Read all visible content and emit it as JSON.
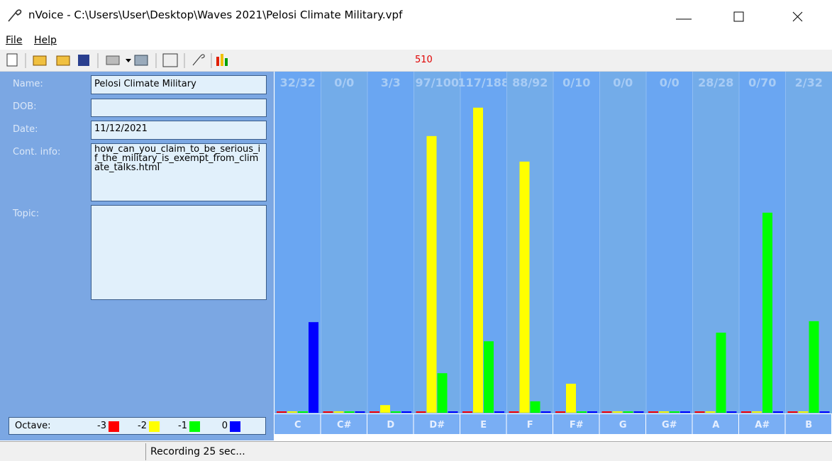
{
  "window": {
    "title": "nVoice - C:\\Users\\User\\Desktop\\Waves 2021\\Pelosi Climate Military.vpf"
  },
  "menu": [
    "File",
    "Help"
  ],
  "toolbar": {
    "counter": "510"
  },
  "fields": [
    {
      "label": "Name:",
      "value": "Pelosi Climate Military"
    },
    {
      "label": "DOB:",
      "value": ""
    },
    {
      "label": "Date:",
      "value": "11/12/2021"
    },
    {
      "label": "Cont. info:",
      "value": "how_can_you_claim_to_be_serious_if_the_military_is_exempt_from_climate_talks.html"
    },
    {
      "label": "Topic:",
      "value": ""
    }
  ],
  "legend_title": "Octave:",
  "status": "Recording 25 sec...",
  "chart_data": {
    "type": "bar",
    "categories": [
      "C",
      "C#",
      "D",
      "D#",
      "E",
      "F",
      "F#",
      "G",
      "G#",
      "A",
      "A#",
      "B"
    ],
    "top_labels": [
      "32/32",
      "0/0",
      "3/3",
      "97/100",
      "117/188",
      "88/92",
      "0/10",
      "0/0",
      "0/0",
      "28/28",
      "0/70",
      "2/32"
    ],
    "ylim": [
      0,
      100
    ],
    "series": [
      {
        "name": "-3",
        "color": "#ff0000",
        "values": [
          0,
          0,
          0,
          0,
          0,
          0,
          0,
          0,
          0,
          0,
          0,
          0
        ]
      },
      {
        "name": "-2",
        "color": "#ffff00",
        "values": [
          0,
          0,
          2.4,
          86.7,
          95.6,
          78.7,
          9.1,
          0,
          0,
          0,
          0,
          0
        ]
      },
      {
        "name": "-1",
        "color": "#00ff00",
        "values": [
          0,
          0,
          0,
          12.4,
          22.4,
          3.6,
          0,
          0,
          0,
          25.1,
          62.7,
          28.7
        ]
      },
      {
        "name": "0",
        "color": "#0000ff",
        "values": [
          28.4,
          0,
          0,
          0,
          0,
          0,
          0,
          0,
          0,
          0,
          0,
          0
        ]
      }
    ]
  }
}
